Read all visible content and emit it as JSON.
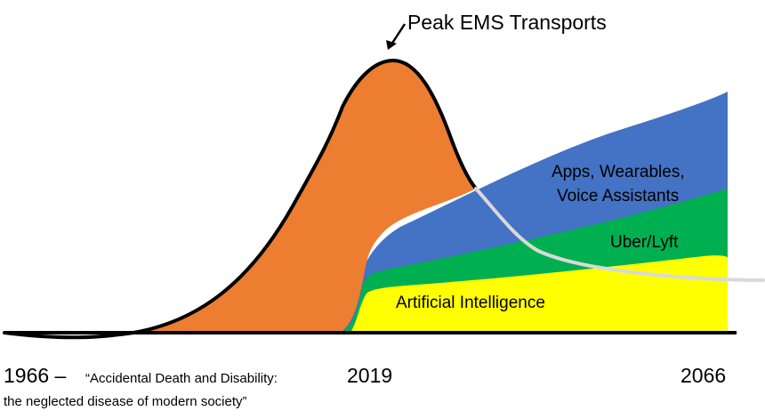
{
  "title": "Peak EMS Transports",
  "areas": {
    "apps": [
      "Apps, Wearables,",
      "Voice Assistants"
    ],
    "uber": "Uber/Lyft",
    "ai": "Artificial Intelligence"
  },
  "timeline": {
    "start_year": "1966 –",
    "start_quote_line1": "“Accidental Death and Disability:",
    "start_quote_line2": "the neglected disease of modern society”",
    "mid_year": "2019",
    "end_year": "2066"
  },
  "colors": {
    "ems": "#ED7D31",
    "apps": "#4472C4",
    "uber": "#00B050",
    "ai": "#FFFF00",
    "projection": "#D9D9D9",
    "outline": "#000000"
  }
}
